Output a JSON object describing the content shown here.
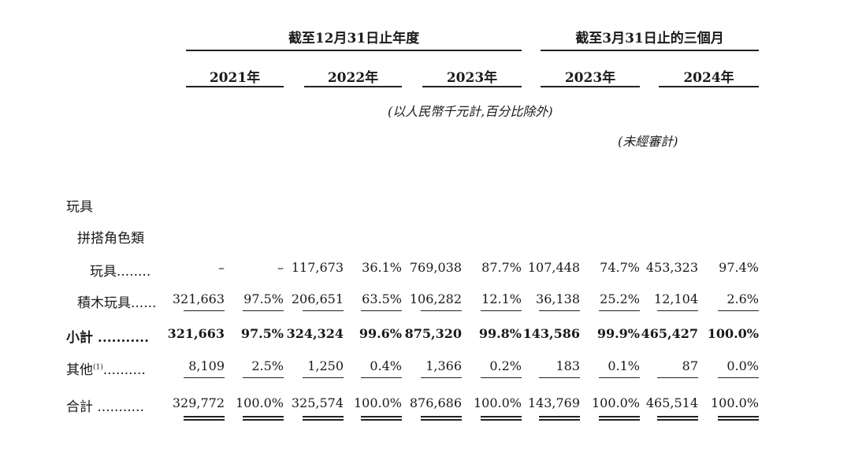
{
  "header": {
    "group1": "截至12月31日止年度",
    "group2": "截至3月31日止的三個月",
    "years": [
      "2021年",
      "2022年",
      "2023年",
      "2023年",
      "2024年"
    ],
    "unit_note": "(以人民幣千元計,百分比除外)",
    "unaudited_note": "(未經審計)"
  },
  "sections": {
    "toys": "玩具",
    "assembly": "拼搭角色類"
  },
  "rows": [
    {
      "label": "玩具........",
      "values": [
        "–",
        "–",
        "117,673",
        "36.1%",
        "769,038",
        "87.7%",
        "107,448",
        "74.7%",
        "453,323",
        "97.4%"
      ]
    },
    {
      "label": "積木玩具......",
      "values": [
        "321,663",
        "97.5%",
        "206,651",
        "63.5%",
        "106,282",
        "12.1%",
        "36,138",
        "25.2%",
        "12,104",
        "2.6%"
      ]
    },
    {
      "label": "小計 ...........",
      "values": [
        "321,663",
        "97.5%",
        "324,324",
        "99.6%",
        "875,320",
        "99.8%",
        "143,586",
        "99.9%",
        "465,427",
        "100.0%"
      ]
    },
    {
      "label": "其他",
      "label_sup": "(1)",
      "label_dots": "..........",
      "values": [
        "8,109",
        "2.5%",
        "1,250",
        "0.4%",
        "1,366",
        "0.2%",
        "183",
        "0.1%",
        "87",
        "0.0%"
      ]
    },
    {
      "label": "合計 ...........",
      "values": [
        "329,772",
        "100.0%",
        "325,574",
        "100.0%",
        "876,686",
        "100.0%",
        "143,769",
        "100.0%",
        "465,514",
        "100.0%"
      ]
    }
  ]
}
